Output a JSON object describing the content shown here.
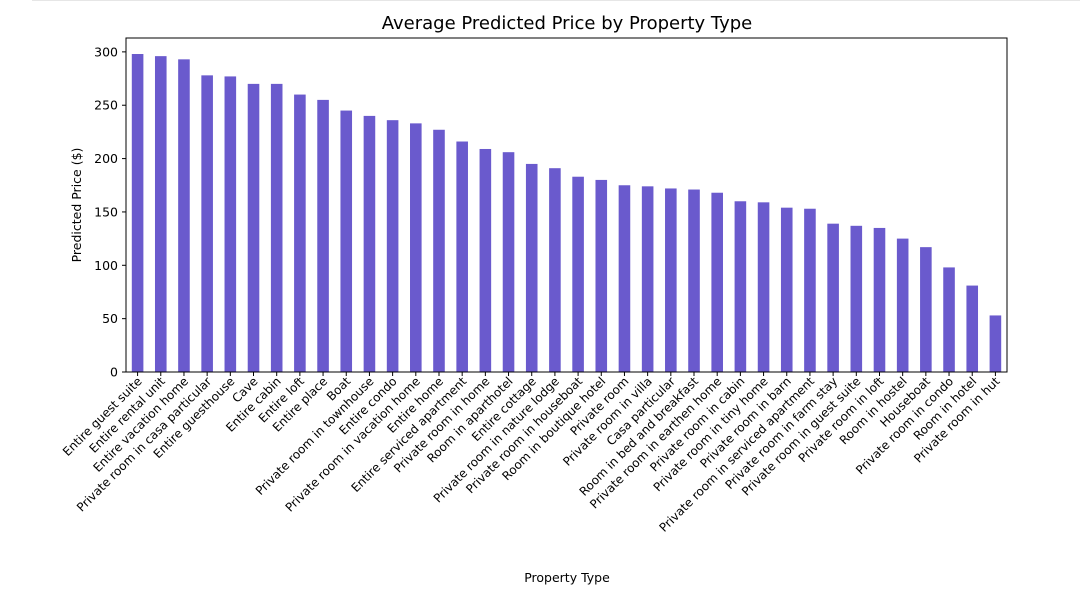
{
  "chart_data": {
    "type": "bar",
    "title": "Average Predicted Price by Property Type",
    "xlabel": "Property Type",
    "ylabel": "Predicted Price ($)",
    "ylim": [
      0,
      313
    ],
    "yticks": [
      0,
      50,
      100,
      150,
      200,
      250,
      300
    ],
    "grid": false,
    "legend": "none",
    "bar_color": "#6a5acd",
    "categories": [
      "Entire guest suite",
      "Entire rental unit",
      "Entire vacation home",
      "Private room in casa particular",
      "Entire guesthouse",
      "Cave",
      "Entire cabin",
      "Entire loft",
      "Entire place",
      "Boat",
      "Private room in townhouse",
      "Entire condo",
      "Private room in vacation home",
      "Entire home",
      "Entire serviced apartment",
      "Private room in home",
      "Room in aparthotel",
      "Entire cottage",
      "Private room in nature lodge",
      "Private room in houseboat",
      "Room in boutique hotel",
      "Private room",
      "Private room in villa",
      "Casa particular",
      "Room in bed and breakfast",
      "Private room in earthen home",
      "Private room in cabin",
      "Private room in tiny home",
      "Private room in barn",
      "Private room in serviced apartment",
      "Private room in farm stay",
      "Private room in guest suite",
      "Private room in loft",
      "Room in hostel",
      "Houseboat",
      "Private room in condo",
      "Room in hotel",
      "Private room in hut"
    ],
    "values": [
      298,
      296,
      293,
      278,
      277,
      270,
      270,
      260,
      255,
      245,
      240,
      236,
      233,
      227,
      216,
      209,
      206,
      195,
      191,
      183,
      180,
      175,
      174,
      172,
      171,
      168,
      160,
      159,
      154,
      153,
      139,
      137,
      135,
      125,
      117,
      98,
      81,
      53
    ]
  }
}
